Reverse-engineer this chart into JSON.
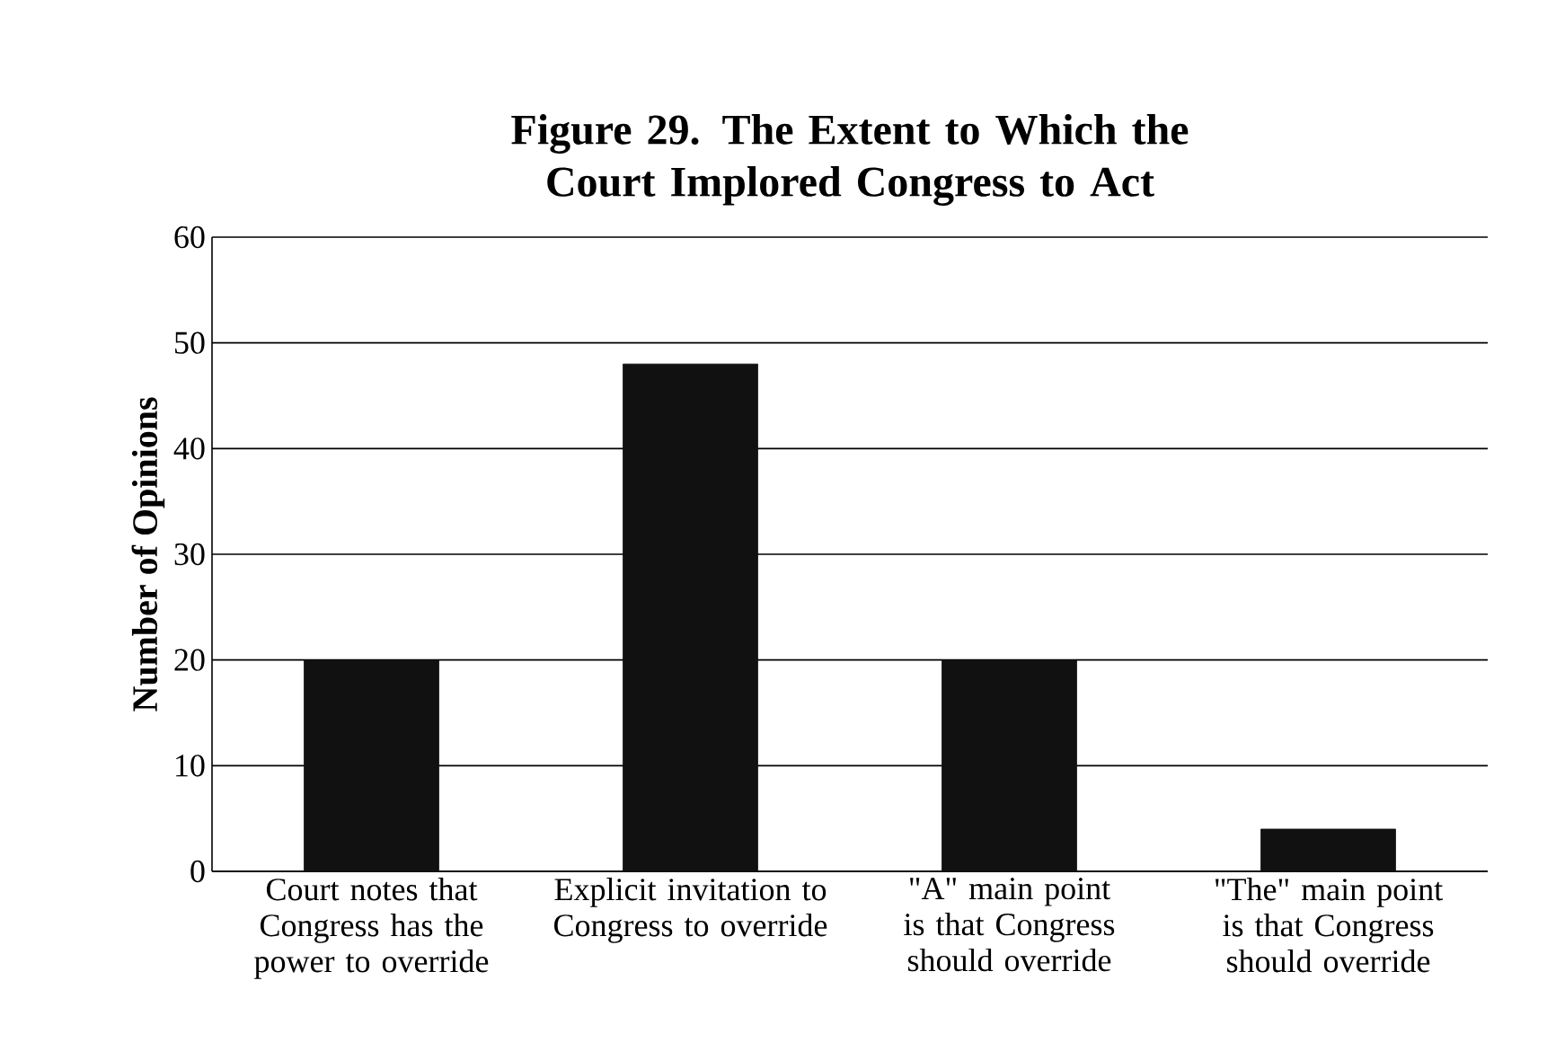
{
  "chart_data": {
    "type": "bar",
    "title": "Figure 29.  The Extent to Which the Court Implored Congress to Act",
    "ylabel": "Number of Opinions",
    "categories": [
      "Court notes that Congress has the power to override",
      "Explicit invitation to Congress to override",
      "\"A\" main point is that Congress should override",
      "\"The\" main point is that Congress should override"
    ],
    "values": [
      20,
      48,
      20,
      4
    ],
    "color": "#111111",
    "ylim": [
      0,
      60
    ],
    "yticks": [
      0,
      10,
      20,
      30,
      40,
      50,
      60
    ],
    "grid": "y"
  }
}
